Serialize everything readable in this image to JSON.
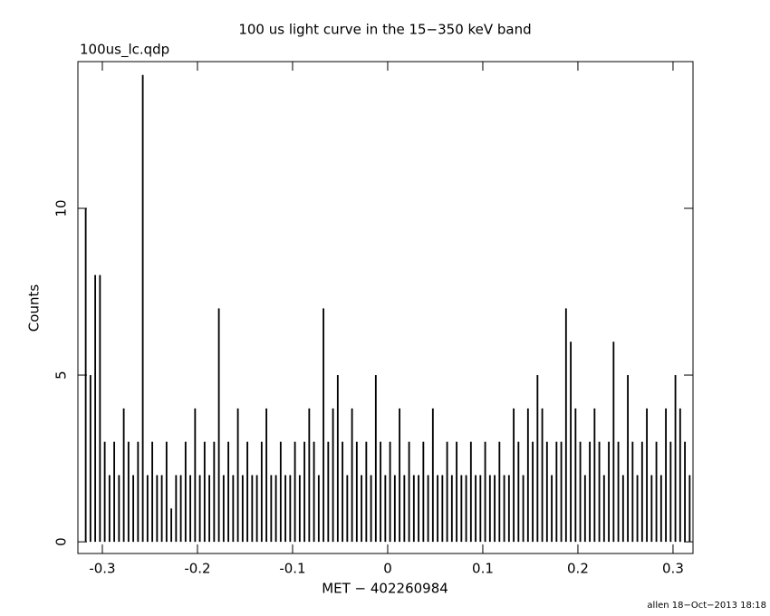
{
  "chart_data": {
    "type": "bar",
    "title": "100 us light curve in the 15−350 keV band",
    "subtitle": "100us_lc.qdp",
    "x_label": "MET − 402260984",
    "y_label": "Counts",
    "footer": "allen 18−Oct−2013 18:18",
    "color": "#000000",
    "bin_width": 0.005,
    "x": [
      -0.32,
      -0.315,
      -0.31,
      -0.305,
      -0.3,
      -0.295,
      -0.29,
      -0.285,
      -0.28,
      -0.275,
      -0.27,
      -0.265,
      -0.26,
      -0.255,
      -0.25,
      -0.245,
      -0.24,
      -0.235,
      -0.23,
      -0.225,
      -0.22,
      -0.215,
      -0.21,
      -0.205,
      -0.2,
      -0.195,
      -0.19,
      -0.185,
      -0.18,
      -0.175,
      -0.17,
      -0.165,
      -0.16,
      -0.155,
      -0.15,
      -0.145,
      -0.14,
      -0.135,
      -0.13,
      -0.125,
      -0.12,
      -0.115,
      -0.11,
      -0.105,
      -0.1,
      -0.095,
      -0.09,
      -0.085,
      -0.08,
      -0.075,
      -0.07,
      -0.065,
      -0.06,
      -0.055,
      -0.05,
      -0.045,
      -0.04,
      -0.035,
      -0.03,
      -0.025,
      -0.02,
      -0.015,
      -0.01,
      -0.005,
      0,
      0.005,
      0.01,
      0.015,
      0.02,
      0.025,
      0.03,
      0.035,
      0.04,
      0.045,
      0.05,
      0.055,
      0.06,
      0.065,
      0.07,
      0.075,
      0.08,
      0.085,
      0.09,
      0.095,
      0.1,
      0.105,
      0.11,
      0.115,
      0.12,
      0.125,
      0.13,
      0.135,
      0.14,
      0.145,
      0.15,
      0.155,
      0.16,
      0.165,
      0.17,
      0.175,
      0.18,
      0.185,
      0.19,
      0.195,
      0.2,
      0.205,
      0.21,
      0.215,
      0.22,
      0.225,
      0.23,
      0.235,
      0.24,
      0.245,
      0.25,
      0.255,
      0.26,
      0.265,
      0.27,
      0.275,
      0.28,
      0.285,
      0.29,
      0.295,
      0.3,
      0.305,
      0.31,
      0.315
    ],
    "values": [
      10,
      5,
      8,
      8,
      3,
      2,
      3,
      2,
      4,
      3,
      2,
      3,
      14,
      2,
      3,
      2,
      2,
      3,
      1,
      2,
      2,
      3,
      2,
      4,
      2,
      3,
      2,
      3,
      7,
      2,
      3,
      2,
      4,
      2,
      3,
      2,
      2,
      3,
      4,
      2,
      2,
      3,
      2,
      2,
      3,
      2,
      3,
      4,
      3,
      2,
      7,
      3,
      4,
      5,
      3,
      2,
      4,
      3,
      2,
      3,
      2,
      5,
      3,
      2,
      3,
      2,
      4,
      2,
      3,
      2,
      2,
      3,
      2,
      4,
      2,
      2,
      3,
      2,
      3,
      2,
      2,
      3,
      2,
      2,
      3,
      2,
      2,
      3,
      2,
      2,
      4,
      3,
      2,
      4,
      3,
      5,
      4,
      3,
      2,
      3,
      3,
      7,
      6,
      4,
      3,
      2,
      3,
      4,
      3,
      2,
      3,
      6,
      3,
      2,
      5,
      3,
      2,
      3,
      4,
      2,
      3,
      2,
      4,
      3,
      5,
      4,
      3,
      2
    ],
    "xlim": [
      -0.3257,
      0.321
    ],
    "ylim": [
      -0.35,
      14.4
    ],
    "xticks": [
      -0.3,
      -0.2,
      -0.1,
      0,
      0.1,
      0.2,
      0.3
    ],
    "yticks": [
      0,
      5,
      10
    ]
  }
}
